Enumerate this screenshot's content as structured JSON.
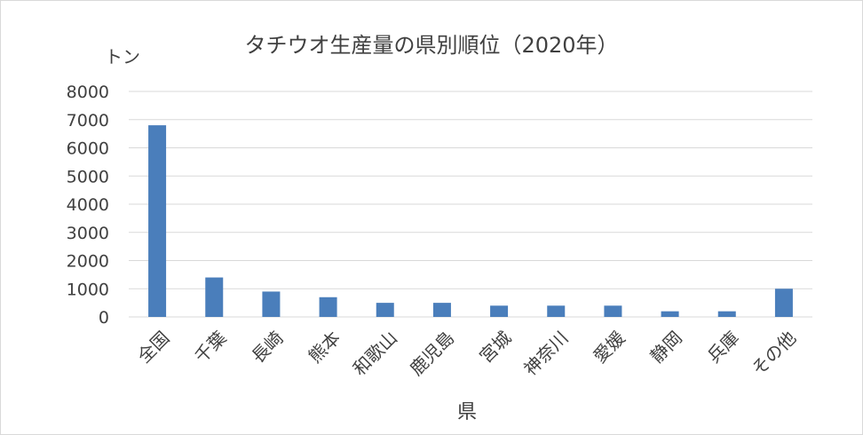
{
  "chart_data": {
    "type": "bar",
    "title": "タチウオ生産量の県別順位（2020年）",
    "ylabel": "トン",
    "xlabel": "県",
    "ylim": [
      0,
      8000
    ],
    "yticks": [
      0,
      1000,
      2000,
      3000,
      4000,
      5000,
      6000,
      7000,
      8000
    ],
    "categories": [
      "全国",
      "千葉",
      "長崎",
      "熊本",
      "和歌山",
      "鹿児島",
      "宮城",
      "神奈川",
      "愛媛",
      "静岡",
      "兵庫",
      "その他"
    ],
    "values": [
      6800,
      1400,
      900,
      700,
      500,
      500,
      400,
      400,
      400,
      200,
      200,
      1000
    ],
    "grid": true,
    "legend": "none",
    "bar_color": "#4a7ebb",
    "grid_color": "#d9d9d9",
    "text_color": "#404040"
  }
}
